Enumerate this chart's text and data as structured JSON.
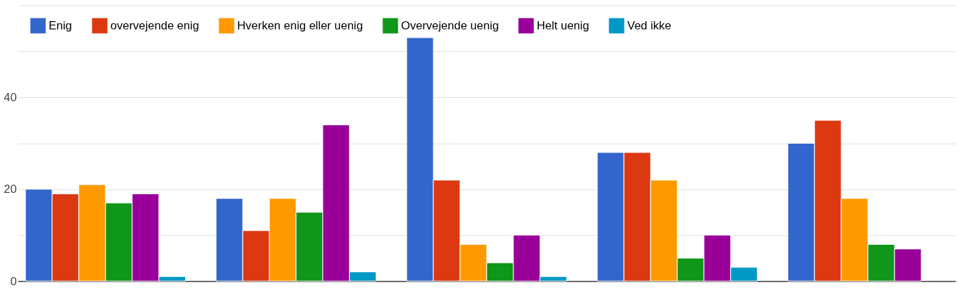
{
  "chart_data": {
    "type": "bar",
    "categories": [
      null,
      null,
      null,
      null,
      null
    ],
    "series": [
      {
        "name": "Enig",
        "color": "#3366cc",
        "values": [
          20,
          18,
          53,
          28,
          30
        ]
      },
      {
        "name": "overvejende enig",
        "color": "#dc3912",
        "values": [
          19,
          11,
          22,
          28,
          35
        ]
      },
      {
        "name": "Hverken enig eller uenig",
        "color": "#ff9900",
        "values": [
          21,
          18,
          8,
          22,
          18
        ]
      },
      {
        "name": "Overvejende uenig",
        "color": "#109618",
        "values": [
          17,
          15,
          4,
          5,
          8
        ]
      },
      {
        "name": "Helt uenig",
        "color": "#990099",
        "values": [
          19,
          34,
          10,
          10,
          7
        ]
      },
      {
        "name": "Ved ikke",
        "color": "#0099c6",
        "values": [
          1,
          2,
          1,
          3,
          null
        ]
      }
    ],
    "ylim": [
      0,
      60
    ],
    "yticks": [
      0,
      {
        "value": 10,
        "label": null
      },
      20,
      {
        "value": 30,
        "label": null
      },
      40,
      {
        "value": 50,
        "label": null
      },
      {
        "value": 60,
        "label": null
      }
    ],
    "grid": "y",
    "legend": "top left",
    "tick_labels": "y"
  }
}
